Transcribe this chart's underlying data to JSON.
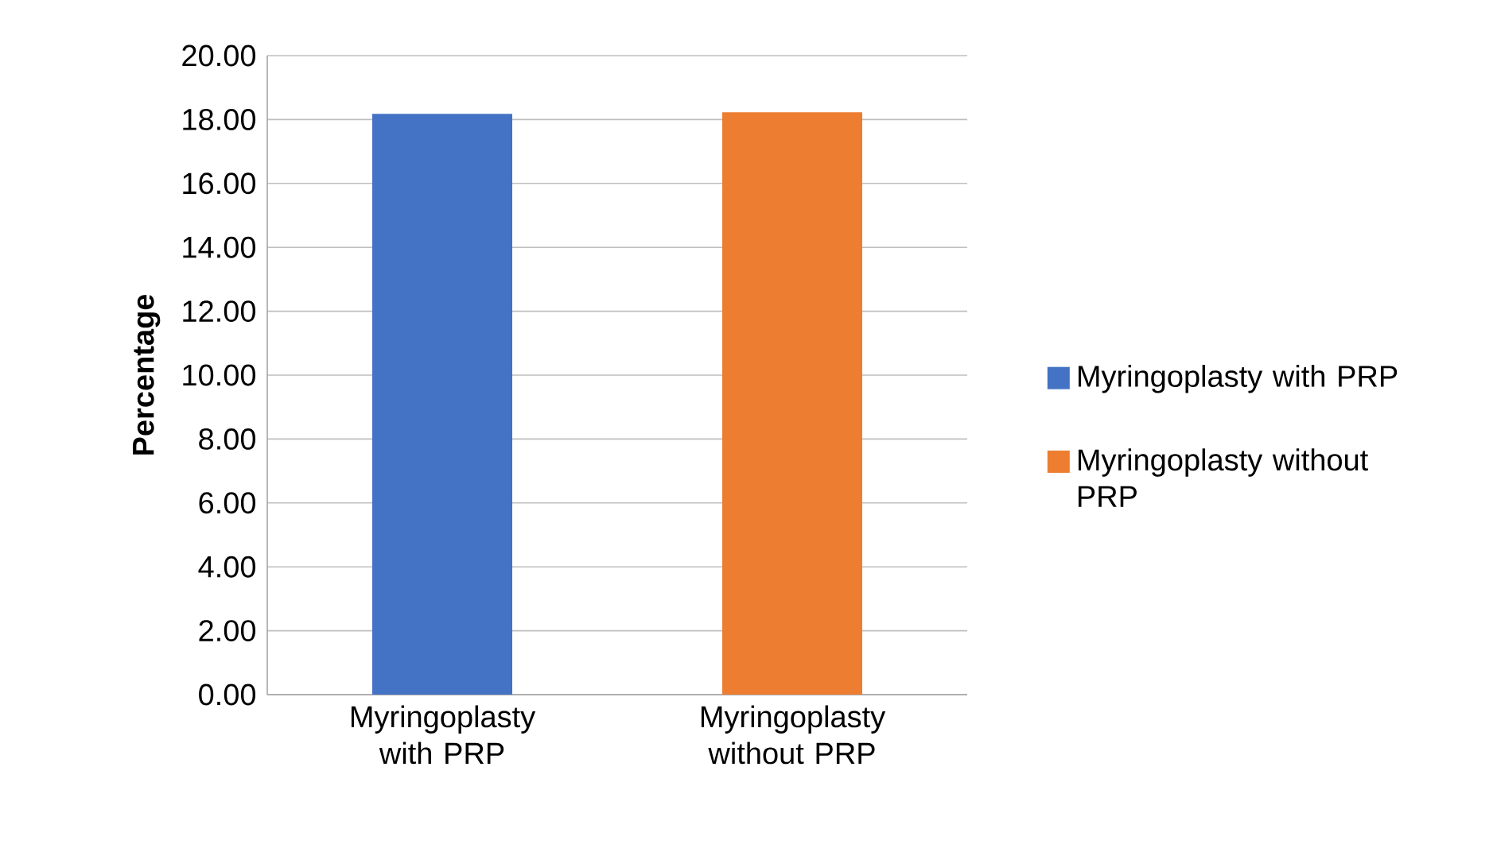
{
  "chart_data": {
    "type": "bar",
    "ylabel": "Percentage",
    "categories": [
      "Myringoplasty with PRP",
      "Myringoplasty without PRP"
    ],
    "series": [
      {
        "name": "Myringoplasty with PRP",
        "color": "#4472c4",
        "values": [
          18.18,
          null
        ]
      },
      {
        "name": "Myringoplasty without PRP",
        "color": "#ed7d31",
        "values": [
          null,
          18.23
        ]
      }
    ],
    "ylim": [
      0,
      20
    ],
    "yticks": [
      {
        "value": 0,
        "label": "0.00"
      },
      {
        "value": 2,
        "label": "2.00"
      },
      {
        "value": 4,
        "label": "4.00"
      },
      {
        "value": 6,
        "label": "6.00"
      },
      {
        "value": 8,
        "label": "8.00"
      },
      {
        "value": 10,
        "label": "10.00"
      },
      {
        "value": 12,
        "label": "12.00"
      },
      {
        "value": 14,
        "label": "14.00"
      },
      {
        "value": 16,
        "label": "16.00"
      },
      {
        "value": 18,
        "label": "18.00"
      },
      {
        "value": 20,
        "label": "20.00"
      }
    ],
    "grid": "y",
    "legend": "right"
  }
}
